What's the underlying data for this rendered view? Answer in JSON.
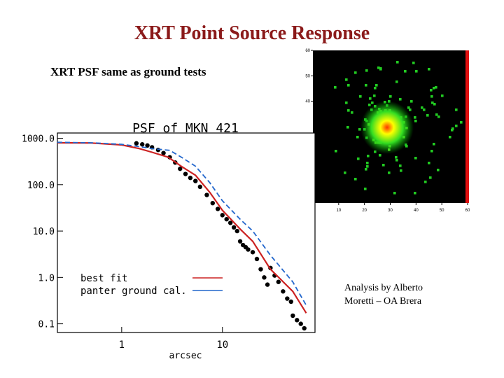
{
  "header": {
    "title": "XRT Point Source Response",
    "subtitle": "XRT PSF same as ground tests"
  },
  "annotation": [
    "Analysis by Alberto",
    "Moretti – OA Brera"
  ],
  "chart_data": [
    {
      "type": "line",
      "title": "PSF of MKN 421",
      "xlabel": "arcsec",
      "xlog": true,
      "ylog": true,
      "xlim": [
        0.23,
        83
      ],
      "ylim": [
        0.065,
        1300
      ],
      "xticks": [
        1,
        10
      ],
      "yticks": [
        {
          "value": 1000,
          "label": "1000.0"
        },
        {
          "value": 100,
          "label": "100.0"
        },
        {
          "value": 10,
          "label": "10.0"
        },
        {
          "value": 1,
          "label": "1.0"
        },
        {
          "value": 0.1,
          "label": "0.1"
        }
      ],
      "series": [
        {
          "style": "markers",
          "color": "#000000",
          "x": [
            1.4,
            1.6,
            1.8,
            2.0,
            2.3,
            2.6,
            3.0,
            3.4,
            3.8,
            4.3,
            4.8,
            5.4,
            6,
            7,
            8,
            9,
            10,
            11,
            12,
            13,
            14,
            15,
            16,
            17,
            18,
            20,
            22,
            24,
            26,
            28,
            30,
            33,
            36,
            40,
            44,
            48,
            50,
            55,
            60,
            65
          ],
          "values": [
            780,
            740,
            700,
            640,
            560,
            480,
            390,
            300,
            220,
            170,
            140,
            120,
            90,
            60,
            40,
            30,
            22,
            18,
            15,
            12,
            10,
            6,
            5,
            4.5,
            4,
            3.5,
            2.5,
            1.5,
            1.0,
            0.7,
            1.6,
            1.1,
            0.8,
            0.5,
            0.35,
            0.3,
            0.15,
            0.12,
            0.1,
            0.08
          ]
        },
        {
          "name": "best fit",
          "style": "solid",
          "color": "#cc2222",
          "x": [
            0.23,
            0.5,
            1,
            1.5,
            2,
            2.9,
            4,
            5.4,
            7.5,
            10,
            15,
            20,
            30,
            50,
            68
          ],
          "values": [
            800,
            790,
            720,
            600,
            500,
            390,
            240,
            160,
            68,
            28,
            11,
            6,
            1.5,
            0.5,
            0.17
          ]
        },
        {
          "name": "panter ground cal.",
          "style": "dashed",
          "color": "#2266cc",
          "x": [
            0.23,
            0.5,
            1,
            1.5,
            2,
            3,
            4,
            5.4,
            7.5,
            10,
            15,
            20,
            30,
            50,
            68
          ],
          "values": [
            820,
            800,
            740,
            660,
            600,
            550,
            380,
            250,
            110,
            45,
            18,
            10,
            3,
            0.8,
            0.25
          ]
        }
      ]
    },
    {
      "type": "image",
      "xlim": [
        0,
        60
      ],
      "ylim": [
        0,
        60
      ],
      "xticks": [
        10,
        20,
        30,
        40,
        50,
        60
      ],
      "yticks": [
        40,
        50,
        60
      ]
    }
  ]
}
